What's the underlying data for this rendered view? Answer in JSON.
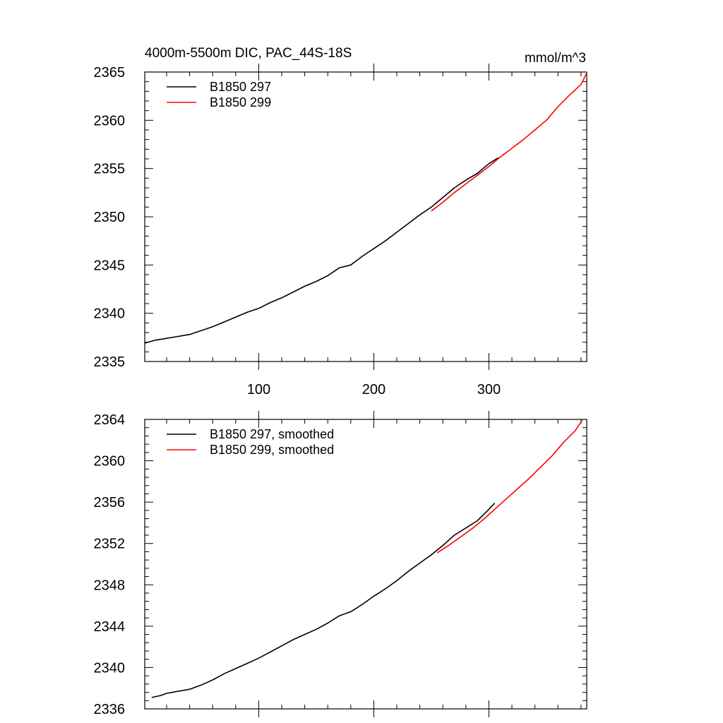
{
  "chart_data": [
    {
      "type": "line",
      "title": "4000m-5500m DIC, PAC_44S-18S",
      "units": "mmol/m^3",
      "xlim": [
        1,
        385
      ],
      "ylim": [
        2335,
        2365
      ],
      "xticks": [
        100,
        200,
        300
      ],
      "yticks": [
        2335,
        2340,
        2345,
        2350,
        2355,
        2360,
        2365
      ],
      "xtick_labels_visible": true,
      "legend_position": "top-left",
      "series": [
        {
          "name": "B1850 297",
          "color": "#000000",
          "x": [
            1,
            10,
            20,
            30,
            40,
            50,
            60,
            70,
            80,
            90,
            100,
            110,
            120,
            130,
            140,
            150,
            160,
            170,
            180,
            190,
            200,
            210,
            220,
            230,
            240,
            250,
            260,
            270,
            280,
            290,
            300,
            308
          ],
          "y": [
            2336.9,
            2337.2,
            2337.4,
            2337.6,
            2337.8,
            2338.2,
            2338.6,
            2339.1,
            2339.6,
            2340.1,
            2340.5,
            2341.1,
            2341.6,
            2342.2,
            2342.8,
            2343.3,
            2343.9,
            2344.7,
            2345.0,
            2345.9,
            2346.7,
            2347.5,
            2348.4,
            2349.3,
            2350.2,
            2351.0,
            2352.0,
            2353.0,
            2353.8,
            2354.5,
            2355.5,
            2356.1
          ]
        },
        {
          "name": "B1850 299",
          "color": "#ff0000",
          "x": [
            250,
            260,
            270,
            280,
            290,
            300,
            310,
            320,
            330,
            340,
            350,
            360,
            370,
            380,
            385
          ],
          "y": [
            2350.6,
            2351.5,
            2352.5,
            2353.4,
            2354.3,
            2355.2,
            2356.2,
            2357.1,
            2358.0,
            2359.0,
            2360.0,
            2361.4,
            2362.6,
            2363.7,
            2364.9
          ]
        }
      ]
    },
    {
      "type": "line",
      "title": "",
      "xlim": [
        1,
        385
      ],
      "ylim": [
        2336,
        2364
      ],
      "xticks": [
        100,
        200,
        300
      ],
      "yticks": [
        2336,
        2340,
        2344,
        2348,
        2352,
        2356,
        2360,
        2364
      ],
      "xtick_labels_visible": false,
      "legend_position": "top-left",
      "series": [
        {
          "name": "B1850 297, smoothed",
          "color": "#000000",
          "x": [
            7,
            15,
            20,
            30,
            40,
            50,
            60,
            70,
            80,
            90,
            100,
            110,
            120,
            130,
            140,
            150,
            160,
            170,
            180,
            190,
            200,
            210,
            220,
            230,
            240,
            250,
            260,
            270,
            280,
            290,
            300,
            305
          ],
          "y": [
            2337.1,
            2337.3,
            2337.5,
            2337.7,
            2337.9,
            2338.3,
            2338.8,
            2339.4,
            2339.9,
            2340.4,
            2340.9,
            2341.5,
            2342.1,
            2342.7,
            2343.2,
            2343.7,
            2344.3,
            2345.0,
            2345.4,
            2346.1,
            2346.9,
            2347.6,
            2348.4,
            2349.3,
            2350.1,
            2350.9,
            2351.8,
            2352.8,
            2353.5,
            2354.2,
            2355.3,
            2355.9
          ]
        },
        {
          "name": "B1850 299, smoothed",
          "color": "#ff0000",
          "x": [
            255,
            265,
            275,
            285,
            295,
            305,
            315,
            325,
            335,
            345,
            355,
            365,
            375,
            381
          ],
          "y": [
            2351.1,
            2351.8,
            2352.6,
            2353.4,
            2354.3,
            2355.3,
            2356.3,
            2357.3,
            2358.3,
            2359.4,
            2360.5,
            2361.8,
            2362.9,
            2363.9
          ]
        }
      ]
    }
  ]
}
